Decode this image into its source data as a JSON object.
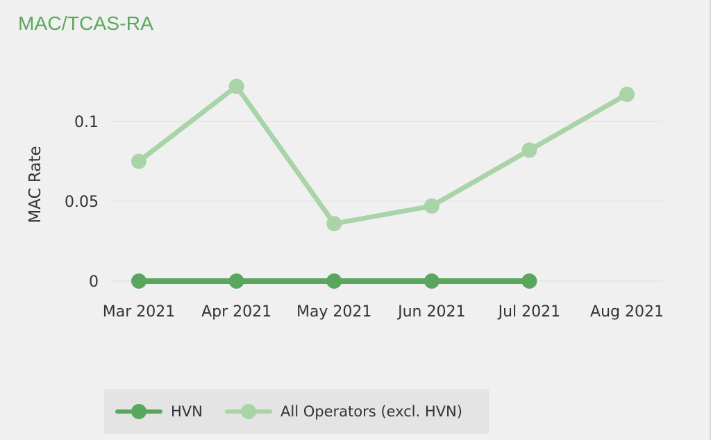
{
  "title": "MAC/TCAS-RA",
  "colors": {
    "hvn": "#5aa65e",
    "all_operators": "#a8d4a8",
    "title": "#5aa85c",
    "grid": "#dedede",
    "text": "#333333"
  },
  "chart_data": {
    "type": "line",
    "title": "MAC/TCAS-RA",
    "xlabel": "",
    "ylabel": "MAC Rate",
    "categories": [
      "Mar 2021",
      "Apr 2021",
      "May 2021",
      "Jun 2021",
      "Jul 2021",
      "Aug 2021"
    ],
    "yticks": [
      {
        "value": 0,
        "label": "0"
      },
      {
        "value": 0.05,
        "label": "0.05"
      },
      {
        "value": 0.1,
        "label": "0.1"
      }
    ],
    "ylim": [
      0,
      0.13
    ],
    "grid": true,
    "legend_position": "bottom",
    "series": [
      {
        "name": "HVN",
        "color": "#5aa65e",
        "values": [
          0,
          0,
          0,
          0,
          0,
          null
        ]
      },
      {
        "name": "All Operators (excl. HVN)",
        "color": "#a8d4a8",
        "values": [
          0.075,
          0.122,
          0.036,
          0.047,
          0.082,
          0.117
        ]
      }
    ]
  }
}
